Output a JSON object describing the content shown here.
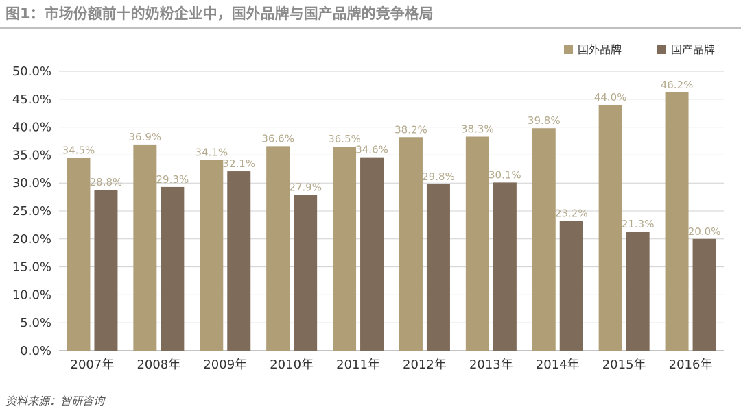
{
  "title": "图1：市场份额前十的奶粉企业中，国外品牌与国产品牌的竞争格局",
  "source": "资料来源：智研咨询",
  "chart_data": {
    "type": "bar",
    "categories": [
      "2007年",
      "2008年",
      "2009年",
      "2010年",
      "2011年",
      "2012年",
      "2013年",
      "2014年",
      "2015年",
      "2016年"
    ],
    "series": [
      {
        "name": "国外品牌",
        "color": "#b09e77",
        "values": [
          34.5,
          36.9,
          34.1,
          36.6,
          36.5,
          38.2,
          38.3,
          39.8,
          44.0,
          46.2
        ],
        "labels": [
          "34.5%",
          "36.9%",
          "34.1%",
          "36.6%",
          "36.5%",
          "38.2%",
          "38.3%",
          "39.8%",
          "44.0%",
          "46.2%"
        ]
      },
      {
        "name": "国产品牌",
        "color": "#7f6b59",
        "values": [
          28.8,
          29.3,
          32.1,
          27.9,
          34.6,
          29.8,
          30.1,
          23.2,
          21.3,
          20.0
        ],
        "labels": [
          "28.8%",
          "29.3%",
          "32.1%",
          "27.9%",
          "34.6%",
          "29.8%",
          "30.1%",
          "23.2%",
          "21.3%",
          "20.0%"
        ]
      }
    ],
    "yticks": [
      "0.0%",
      "5.0%",
      "10.0%",
      "15.0%",
      "20.0%",
      "25.0%",
      "30.0%",
      "35.0%",
      "40.0%",
      "45.0%",
      "50.0%"
    ],
    "ylim": [
      0,
      50
    ],
    "grid": true,
    "legend": "top-right"
  }
}
